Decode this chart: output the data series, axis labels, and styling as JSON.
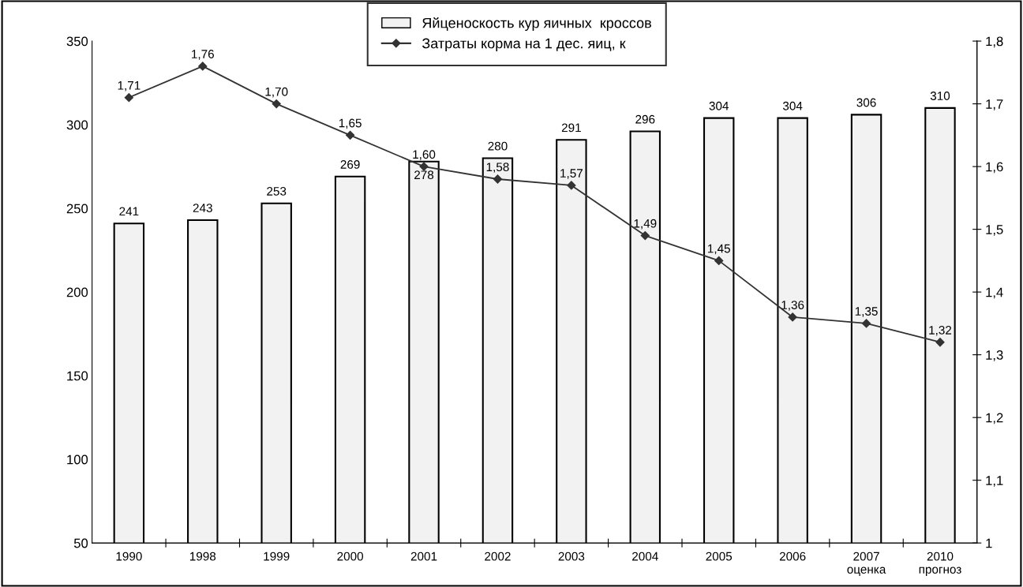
{
  "chart_data": {
    "type": "bar",
    "categories": [
      "1990",
      "1998",
      "1999",
      "2000",
      "2001",
      "2002",
      "2003",
      "2004",
      "2005",
      "2006",
      "2007\nоценка",
      "2010\nпрогноз"
    ],
    "series": [
      {
        "name": "Яйценоскость кур яичных  кроссов",
        "color": "#f2f2f2",
        "values": [
          241,
          243,
          253,
          269,
          278,
          280,
          291,
          296,
          304,
          304,
          306,
          310
        ],
        "value_labels": [
          "241",
          "243",
          "253",
          "269",
          "278",
          "280",
          "291",
          "296",
          "304",
          "304",
          "306",
          "310"
        ]
      },
      {
        "name": "Затраты корма на 1 дес. яиц, к",
        "type": "line",
        "axis": "y2",
        "color": "#333333",
        "marker": "diamond",
        "line_style": "solid",
        "values": [
          1.71,
          1.76,
          1.7,
          1.65,
          1.6,
          1.58,
          1.57,
          1.49,
          1.45,
          1.36,
          1.35,
          1.32
        ],
        "value_labels": [
          "1,71",
          "1,76",
          "1,70",
          "1,65",
          "1,60",
          "1,58",
          "1,57",
          "1,49",
          "1,45",
          "1,36",
          "1,35",
          "1,32"
        ]
      }
    ],
    "ylim": [
      50,
      350
    ],
    "yticks": [
      50,
      100,
      150,
      200,
      250,
      300,
      350
    ],
    "y2lim": [
      1,
      1.8
    ],
    "y2ticks": [
      1,
      {
        "value": 1.1,
        "label": "1,1"
      },
      {
        "value": 1.2,
        "label": "1,2"
      },
      {
        "value": 1.3,
        "label": "1,3"
      },
      {
        "value": 1.4,
        "label": "1,4"
      },
      {
        "value": 1.5,
        "label": "1,5"
      },
      {
        "value": 1.6,
        "label": "1,6"
      },
      {
        "value": 1.7,
        "label": "1,7"
      },
      {
        "value": 1.8,
        "label": "1,8"
      }
    ],
    "grid": false,
    "legend": "top",
    "data_labels": true
  }
}
